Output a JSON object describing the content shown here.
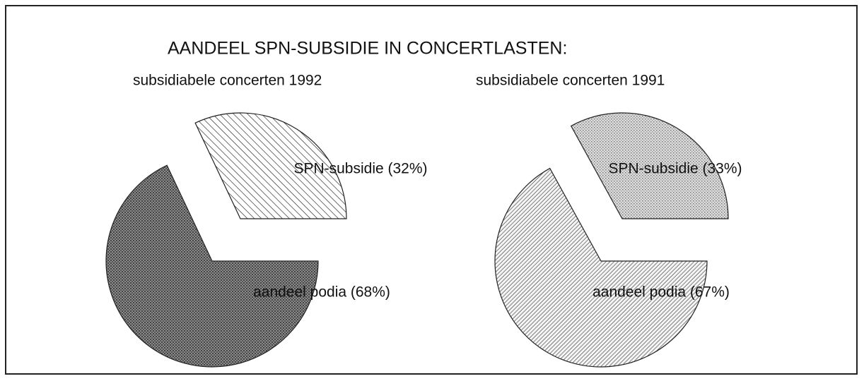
{
  "title": "AANDEEL SPN-SUBSIDIE IN CONCERTLASTEN:",
  "chart_data": [
    {
      "type": "pie",
      "subtitle": "subsidiabele concerten 1992",
      "categories": [
        "SPN-subsidie (32%)",
        "aandeel podia (68%)"
      ],
      "values": [
        32,
        68
      ]
    },
    {
      "type": "pie",
      "subtitle": "subsidiabele concerten 1991",
      "categories": [
        "SPN-subsidie (33%)",
        "aandeel podia (67%)"
      ],
      "values": [
        33,
        67
      ]
    }
  ]
}
